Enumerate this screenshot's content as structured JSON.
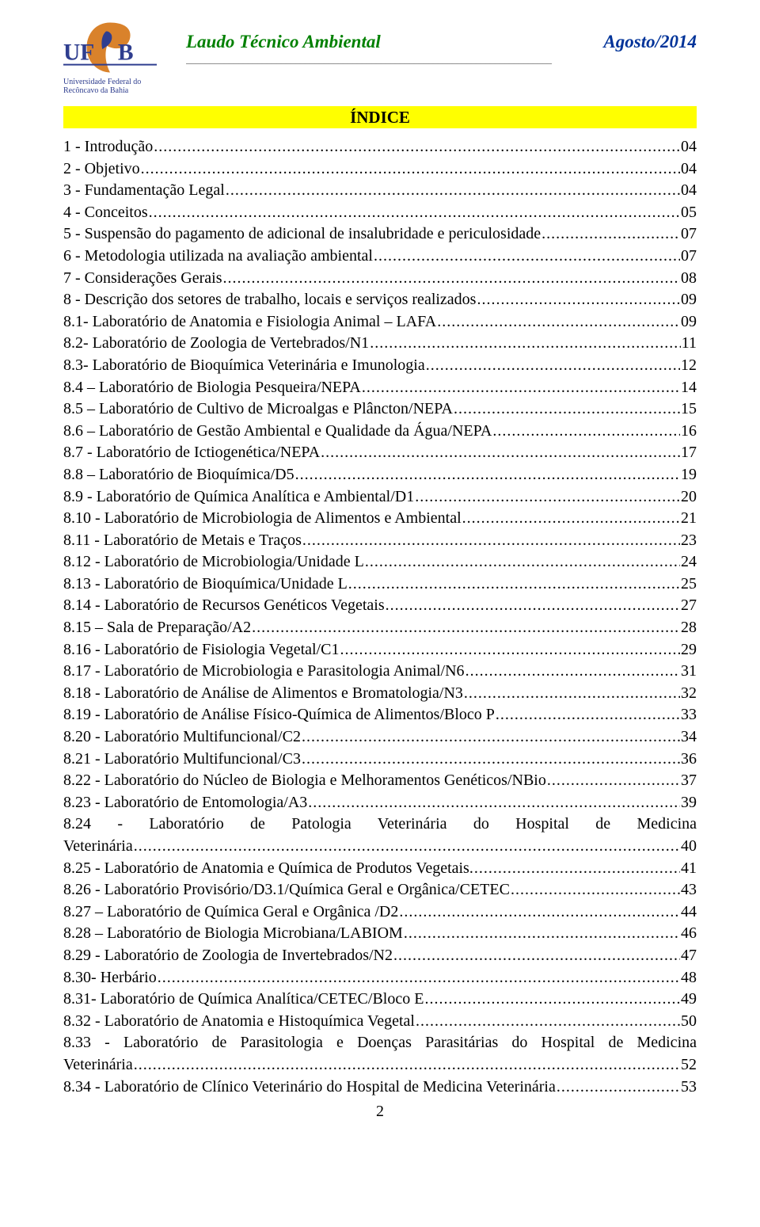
{
  "header": {
    "logo_caption_line1": "Universidade Federal do",
    "logo_caption_line2": "Recôncavo da Bahia",
    "title_left": "Laudo Técnico Ambiental",
    "title_right": "Agosto/2014"
  },
  "index_title": "ÍNDICE",
  "colors": {
    "title_green": "#008000",
    "title_blue": "#003399",
    "band_bg": "#ffff00",
    "logo_blue": "#2f3e8f",
    "logo_orange": "#d9822b"
  },
  "toc": [
    {
      "label": "1 - Introdução",
      "page": "04"
    },
    {
      "label": "2 - Objetivo",
      "page": "04"
    },
    {
      "label": "3 - Fundamentação Legal",
      "page": "04"
    },
    {
      "label": "4 - Conceitos",
      "page": "05"
    },
    {
      "label": "5 - Suspensão do pagamento de adicional de insalubridade e periculosidade",
      "page": "07"
    },
    {
      "label": "6 - Metodologia utilizada na avaliação ambiental",
      "page": "07"
    },
    {
      "label": "7 - Considerações Gerais",
      "page": "08"
    },
    {
      "label": "8 - Descrição dos setores de trabalho, locais e serviços realizados",
      "page": "09"
    },
    {
      "label": "8.1- Laboratório de Anatomia e Fisiologia Animal – LAFA",
      "page": "09"
    },
    {
      "label": "8.2- Laboratório de Zoologia de Vertebrados/N1",
      "page": "11"
    },
    {
      "label": "8.3- Laboratório de Bioquímica Veterinária e  Imunologia",
      "page": "12"
    },
    {
      "label": "8.4 – Laboratório de Biologia Pesqueira/NEPA",
      "page": "14"
    },
    {
      "label": "8.5 – Laboratório de Cultivo de Microalgas e Plâncton/NEPA",
      "page": "15"
    },
    {
      "label": "8.6 – Laboratório de Gestão Ambiental e Qualidade da Água/NEPA",
      "page": "16"
    },
    {
      "label": "8.7 - Laboratório de Ictiogenética/NEPA",
      "page": "17"
    },
    {
      "label": "8.8 – Laboratório de Bioquímica/D5",
      "page": "19"
    },
    {
      "label": "8.9 - Laboratório de Química Analítica e Ambiental/D1",
      "page": "20"
    },
    {
      "label": "8.10 - Laboratório de Microbiologia de Alimentos e Ambiental",
      "page": "21"
    },
    {
      "label": "8.11 - Laboratório de Metais e Traços",
      "page": "23"
    },
    {
      "label": "8.12 - Laboratório de Microbiologia/Unidade L",
      "page": "24"
    },
    {
      "label": "8.13 - Laboratório de Bioquímica/Unidade L",
      "page": "25"
    },
    {
      "label": "8.14 - Laboratório de Recursos Genéticos Vegetais",
      "page": "27"
    },
    {
      "label": "8.15 – Sala de Preparação/A2",
      "page": "28"
    },
    {
      "label": "8.16 - Laboratório de  Fisiologia Vegetal/C1",
      "page": "29"
    },
    {
      "label": "8.17 - Laboratório de Microbiologia e Parasitologia Animal/N6",
      "page": "31"
    },
    {
      "label": "8.18 - Laboratório de Análise de Alimentos e Bromatologia/N3",
      "page": "32"
    },
    {
      "label": "8.19 - Laboratório de Análise Físico-Química de Alimentos/Bloco P",
      "page": "33"
    },
    {
      "label": "8.20 - Laboratório Multifuncional/C2",
      "page": "34"
    },
    {
      "label": "8.21 - Laboratório Multifuncional/C3",
      "page": "36"
    },
    {
      "label": "8.22 - Laboratório do Núcleo de Biologia e Melhoramentos Genéticos/NBio",
      "page": "37"
    },
    {
      "label": "8.23 - Laboratório de Entomologia/A3",
      "page": "39"
    }
  ],
  "toc_multi": [
    {
      "line1": "8.24 - Laboratório de Patologia Veterinária do Hospital de Medicina",
      "line2_label": "Veterinária",
      "page": "40"
    }
  ],
  "toc_after": [
    {
      "label": "8.25 - Laboratório de Anatomia e Química de Produtos Vegetais.",
      "page": "41"
    },
    {
      "label": "8.26 - Laboratório Provisório/D3.1/Química Geral e Orgânica/CETEC",
      "page": "43"
    },
    {
      "label": "8.27 – Laboratório de Química Geral e Orgânica /D2",
      "page": "44"
    },
    {
      "label": "8.28 – Laboratório de Biologia Microbiana/LABIOM",
      "page": "46"
    },
    {
      "label": "8.29 - Laboratório de Zoologia de Invertebrados/N2",
      "page": "47"
    },
    {
      "label": "8.30- Herbário",
      "page": "48"
    },
    {
      "label": "8.31- Laboratório de Química Analítica/CETEC/Bloco E",
      "page": "49"
    },
    {
      "label": "8.32 - Laboratório de Anatomia e Histoquímica Vegetal",
      "page": "50"
    }
  ],
  "toc_multi2": [
    {
      "line1": "8.33 - Laboratório de Parasitologia e Doenças Parasitárias do Hospital de Medicina",
      "line2_label": "Veterinária",
      "page": "52"
    }
  ],
  "toc_last": [
    {
      "label": "8.34 - Laboratório de  Clínico Veterinário do Hospital de Medicina Veterinária",
      "page": "53"
    }
  ],
  "page_number": "2"
}
